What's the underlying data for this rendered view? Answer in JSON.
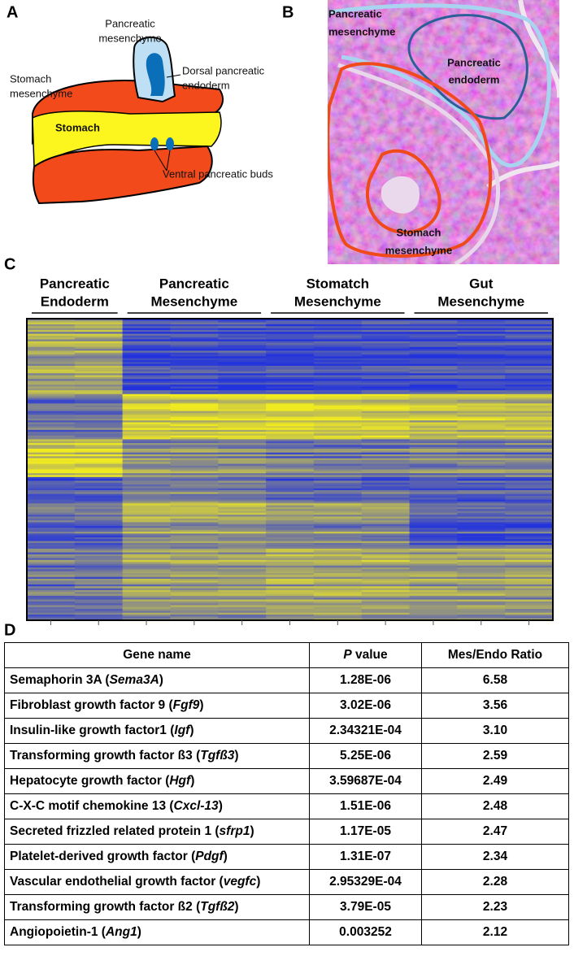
{
  "panel_a": {
    "label": "A",
    "pancreatic_mesenchyme": [
      "Pancreatic",
      "mesenchyme"
    ],
    "dorsal_endoderm": [
      "Dorsal pancreatic",
      "endoderm"
    ],
    "stomach_mesenchyme": [
      "Stomach",
      "mesenchyme"
    ],
    "stomach": "Stomach",
    "ventral_buds": "Ventral pancreatic buds"
  },
  "panel_b": {
    "label": "B",
    "pancreatic_mesenchyme": [
      "Pancreatic",
      "mesenchyme"
    ],
    "pancreatic_endoderm": [
      "Pancreatic",
      "endoderm"
    ],
    "stomach_mesenchyme": [
      "Stomach",
      "mesenchyme"
    ]
  },
  "panel_c": {
    "label": "C",
    "groups": [
      {
        "name": [
          "Pancreatic",
          "Endoderm"
        ],
        "samples": 2
      },
      {
        "name": [
          "Pancreatic",
          "Mesenchyme"
        ],
        "samples": 3
      },
      {
        "name": [
          "Stomatch",
          "Mesenchyme"
        ],
        "samples": 3
      },
      {
        "name": [
          "Gut",
          "Mesenchyme"
        ],
        "samples": 3
      }
    ]
  },
  "panel_d": {
    "label": "D",
    "header": {
      "gene": "Gene name",
      "p_italic": "P",
      "p_rest": " value",
      "ratio": "Mes/Endo Ratio"
    },
    "rows": [
      {
        "name": [
          "Semaphorin 3A (",
          "Sema3A",
          ")"
        ],
        "p": "1.28E-06",
        "ratio": "6.58"
      },
      {
        "name": [
          "Fibroblast growth factor 9 (",
          "Fgf9",
          ")"
        ],
        "p": "3.02E-06",
        "ratio": "3.56"
      },
      {
        "name": [
          "Insulin-like growth factor1 (",
          "Igf",
          ")"
        ],
        "p": "2.34321E-04",
        "ratio": "3.10"
      },
      {
        "name": [
          "Transforming growth factor ß3 (",
          "Tgfß3",
          ")"
        ],
        "p": "5.25E-06",
        "ratio": "2.59"
      },
      {
        "name": [
          "Hepatocyte growth factor (",
          "Hgf",
          ")"
        ],
        "p": "3.59687E-04",
        "ratio": "2.49"
      },
      {
        "name": [
          "C-X-C motif chemokine 13 (",
          "Cxcl-13",
          ")"
        ],
        "p": "1.51E-06",
        "ratio": "2.48"
      },
      {
        "name": [
          "Secreted frizzled related protein 1 (",
          "sfrp1",
          ")"
        ],
        "p": "1.17E-05",
        "ratio": "2.47"
      },
      {
        "name": [
          "Platelet-derived growth factor (",
          "Pdgf",
          ")"
        ],
        "p": "1.31E-07",
        "ratio": "2.34"
      },
      {
        "name": [
          "Vascular endothelial growth factor (",
          "vegfc",
          ")"
        ],
        "p": "2.95329E-04",
        "ratio": "2.28"
      },
      {
        "name": [
          "Transforming growth factor ß2 (",
          "Tgfß2",
          ")"
        ],
        "p": "3.79E-05",
        "ratio": "2.23"
      },
      {
        "name": [
          "Angiopoietin-1 (",
          "Ang1",
          ")"
        ],
        "p": "0.003252",
        "ratio": "2.12"
      }
    ]
  }
}
